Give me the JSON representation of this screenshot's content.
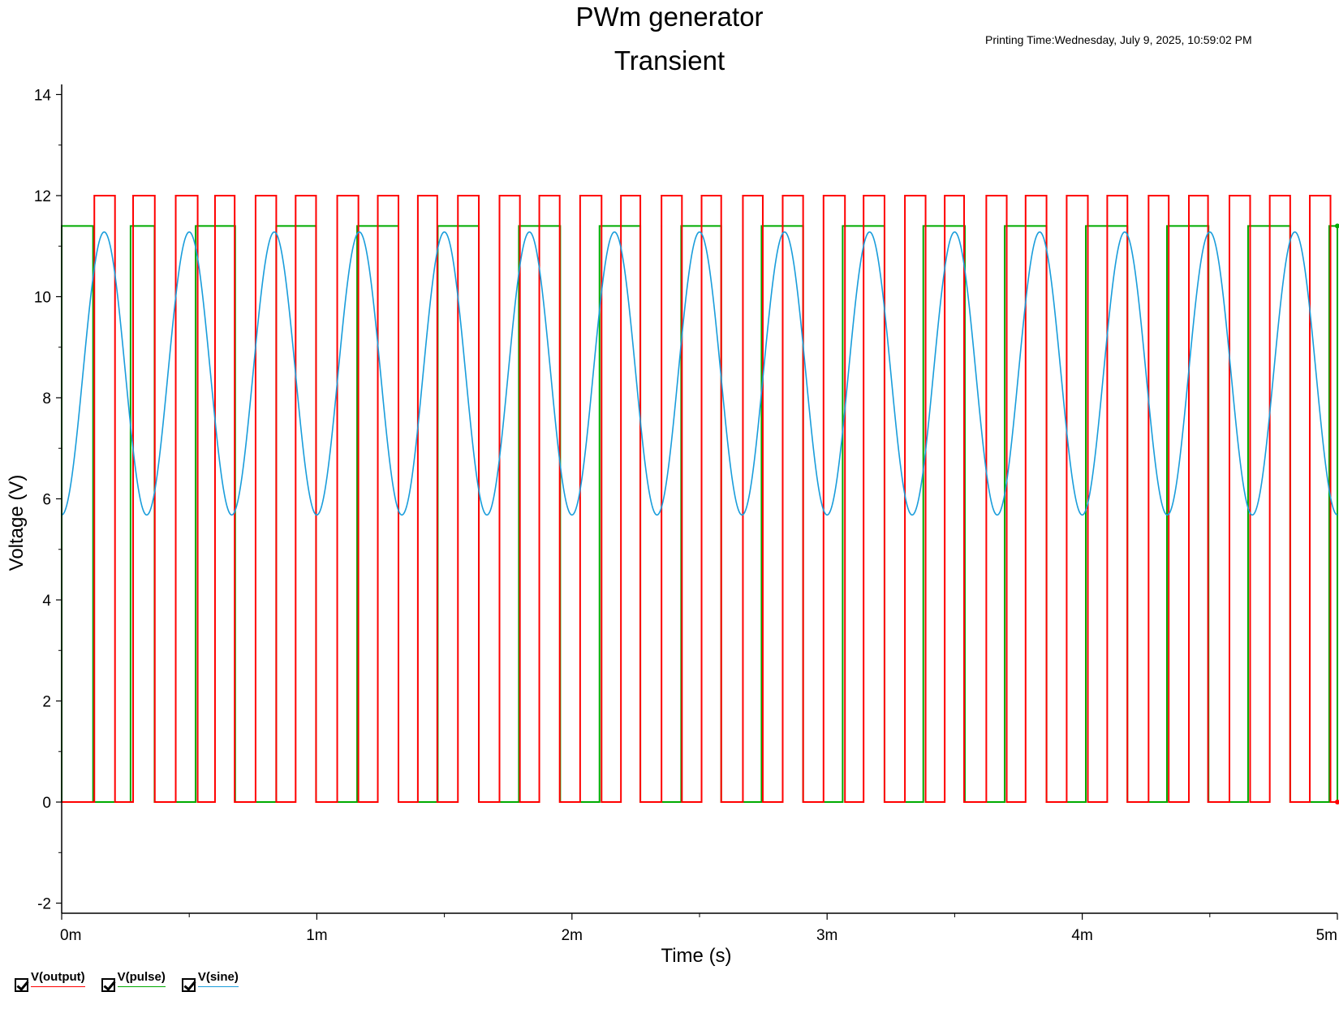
{
  "chart_data": {
    "type": "line",
    "title": "PWm generator",
    "subtitle": "Transient",
    "print_time": "Printing Time:Wednesday, July 9, 2025, 10:59:02 PM",
    "xlabel": "Time (s)",
    "ylabel": "Voltage (V)",
    "xlim": [
      0,
      0.005
    ],
    "ylim": [
      -2.2,
      14.2
    ],
    "x_ticks": [
      0,
      0.001,
      0.002,
      0.003,
      0.004,
      0.005
    ],
    "x_tick_labels": [
      "0m",
      "1m",
      "2m",
      "3m",
      "4m",
      "5m"
    ],
    "y_ticks": [
      -2,
      0,
      2,
      4,
      6,
      8,
      10,
      12,
      14
    ],
    "y_tick_labels": [
      "-2",
      "0",
      "2",
      "4",
      "6",
      "8",
      "10",
      "12",
      "14"
    ],
    "grid": false,
    "series": [
      {
        "name": "V(output)",
        "color": "#ff0000",
        "kind": "pwm",
        "low": 0,
        "high": 12,
        "high_intervals": [
          [
            0.000128,
            0.000209
          ],
          [
            0.00028,
            0.000365
          ],
          [
            0.000447,
            0.000533
          ],
          [
            0.000601,
            0.000678
          ],
          [
            0.00076,
            0.000841
          ],
          [
            0.000917,
            0.000997
          ],
          [
            0.00108,
            0.001163
          ],
          [
            0.001239,
            0.00132
          ],
          [
            0.001396,
            0.001472
          ],
          [
            0.001553,
            0.001635
          ],
          [
            0.001716,
            0.001796
          ],
          [
            0.001872,
            0.001952
          ],
          [
            0.002032,
            0.002116
          ],
          [
            0.002192,
            0.002268
          ],
          [
            0.002351,
            0.002431
          ],
          [
            0.002508,
            0.002585
          ],
          [
            0.00267,
            0.002748
          ],
          [
            0.002826,
            0.002906
          ],
          [
            0.002986,
            0.00307
          ],
          [
            0.003143,
            0.003225
          ],
          [
            0.003305,
            0.003386
          ],
          [
            0.003461,
            0.003537
          ],
          [
            0.003624,
            0.003704
          ],
          [
            0.003778,
            0.00386
          ],
          [
            0.003939,
            0.004022
          ],
          [
            0.004098,
            0.004177
          ],
          [
            0.00426,
            0.004339
          ],
          [
            0.004418,
            0.004493
          ],
          [
            0.004577,
            0.004658
          ],
          [
            0.004735,
            0.004815
          ],
          [
            0.004892,
            0.004973
          ]
        ]
      },
      {
        "name": "V(pulse)",
        "color": "#00aa00",
        "kind": "pwm",
        "low": 0,
        "high": 11.4,
        "high_intervals": [
          [
            0.0,
            0.000123
          ],
          [
            0.00027,
            0.000364
          ],
          [
            0.000525,
            0.00068
          ],
          [
            0.000841,
            0.000997
          ],
          [
            0.001158,
            0.00132
          ],
          [
            0.001474,
            0.001635
          ],
          [
            0.001792,
            0.001954
          ],
          [
            0.002108,
            0.002268
          ],
          [
            0.002428,
            0.002585
          ],
          [
            0.002743,
            0.002906
          ],
          [
            0.003061,
            0.003225
          ],
          [
            0.003377,
            0.00354
          ],
          [
            0.003696,
            0.00386
          ],
          [
            0.004014,
            0.004177
          ],
          [
            0.004332,
            0.004495
          ],
          [
            0.00465,
            0.004815
          ],
          [
            0.004968,
            0.005
          ]
        ]
      },
      {
        "name": "V(sine)",
        "color": "#1a9ddb",
        "kind": "sine",
        "offset": 8.48,
        "amplitude": 2.8,
        "frequency_hz": 3000,
        "phase_deg": -90,
        "range": [
          5.68,
          11.28
        ]
      }
    ]
  }
}
